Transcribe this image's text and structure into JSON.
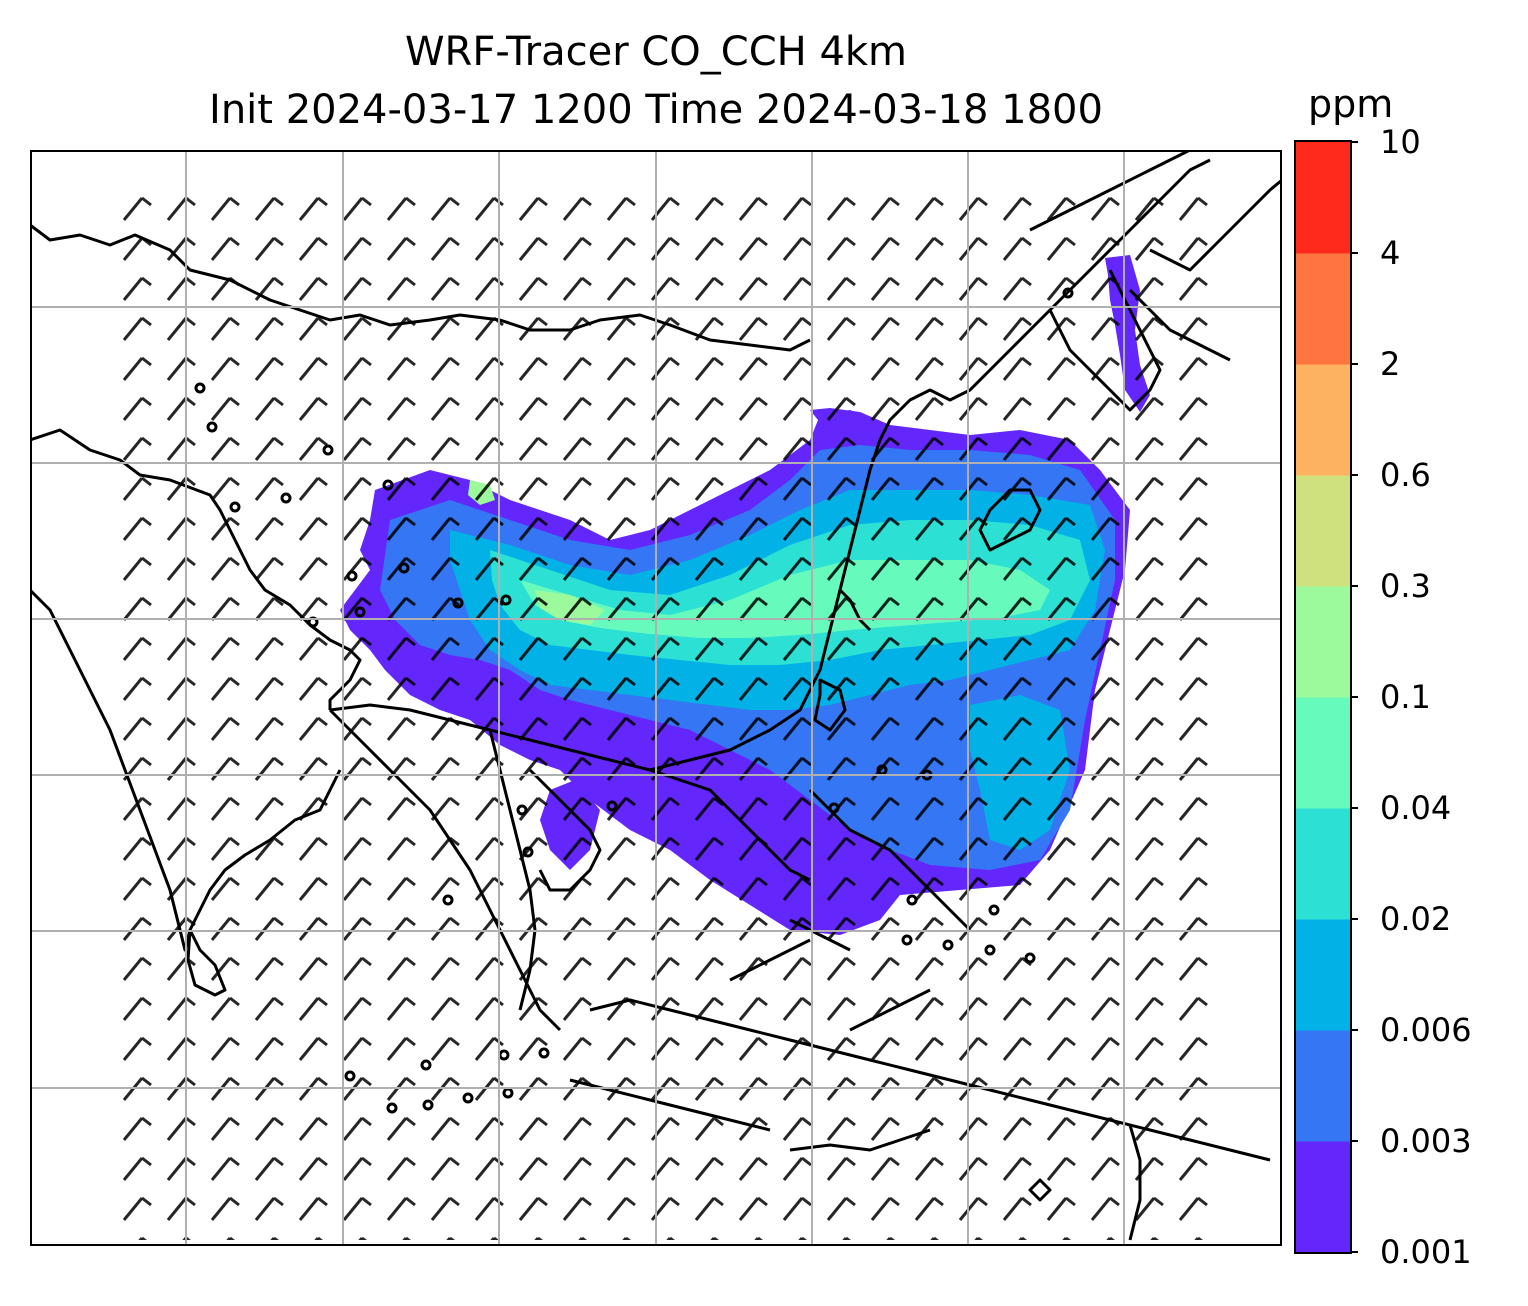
{
  "title": {
    "line1": "WRF-Tracer CO_CCH 4km",
    "line2": "Init 2024-03-17 1200 Time 2024-03-18 1800"
  },
  "colorbar": {
    "unit": "ppm",
    "levels": [
      "0.001",
      "0.003",
      "0.006",
      "0.02",
      "0.04",
      "0.1",
      "0.3",
      "0.6",
      "2",
      "4",
      "10"
    ],
    "colors": [
      "#6326fb",
      "#3476f3",
      "#02b2e6",
      "#2ce0d4",
      "#66fbbd",
      "#9cfa9c",
      "#cfe07e",
      "#fdb262",
      "#ff7540",
      "#ff2a1c"
    ]
  },
  "map": {
    "field": "CO_CCH tracer concentration",
    "overlay": "wind barbs",
    "gridlines": true,
    "coastlines": true,
    "region": "South / East / Southeast Asia"
  }
}
